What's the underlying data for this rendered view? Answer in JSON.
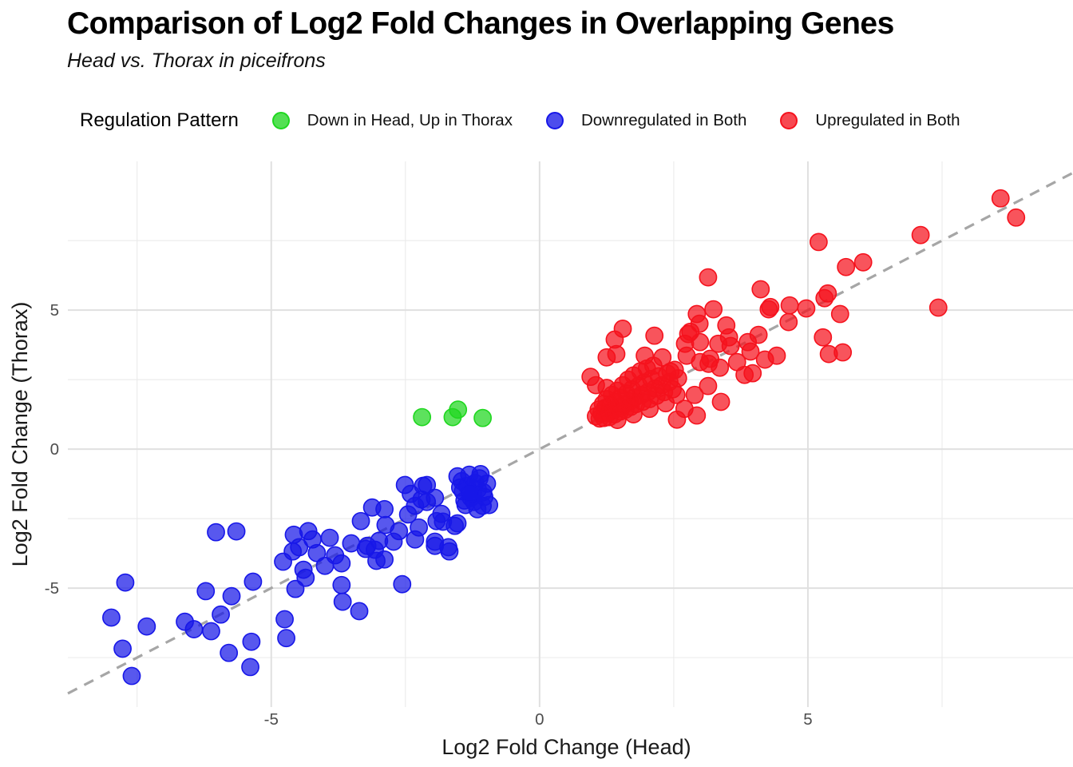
{
  "title": "Comparison of Log2 Fold Changes in Overlapping Genes",
  "subtitle": "Head vs. Thorax in piceifrons",
  "legend": {
    "title": "Regulation Pattern",
    "position": "top"
  },
  "colors": {
    "background": "#ffffff",
    "grid_major": "#e0e0e0",
    "grid_minor": "#ececec",
    "reference_line": "#a6a6a6",
    "tick_label": "#4d4d4d",
    "axis_title": "#1a1a1a",
    "green": "#1fd71f",
    "blue": "#1717e8",
    "red": "#f5121d"
  },
  "chart_data": {
    "type": "scatter",
    "title": "Comparison of Log2 Fold Changes in Overlapping Genes",
    "subtitle": "Head vs. Thorax in piceifrons",
    "xlabel": "Log2 Fold Change (Head)",
    "ylabel": "Log2 Fold Change (Thorax)",
    "xlim": [
      -8.79,
      9.94
    ],
    "ylim": [
      -9.28,
      10.35
    ],
    "x_ticks": [
      -5,
      0,
      5
    ],
    "y_ticks": [
      -5,
      0,
      5
    ],
    "x_minor_ticks": [
      -7.5,
      -2.5,
      2.5,
      7.5
    ],
    "y_minor_ticks": [
      -7.5,
      -2.5,
      2.5,
      7.5
    ],
    "grid": true,
    "legend_position": "top",
    "reference_line": {
      "type": "identity y = x",
      "style": "dashed",
      "color": "#a6a6a6"
    },
    "point_radius": 10.6,
    "series": [
      {
        "name": "Down in Head, Up in Thorax",
        "color": "#1fd71f",
        "points": [
          [
            -2.19,
            1.15
          ],
          [
            -1.62,
            1.15
          ],
          [
            -1.52,
            1.42
          ],
          [
            -1.06,
            1.12
          ]
        ]
      },
      {
        "name": "Downregulated in Both",
        "color": "#1717e8",
        "points": [
          [
            -7.72,
            -4.8
          ],
          [
            -7.98,
            -6.06
          ],
          [
            -7.77,
            -7.18
          ],
          [
            -7.6,
            -8.16
          ],
          [
            -7.32,
            -6.38
          ],
          [
            -6.61,
            -6.21
          ],
          [
            -6.44,
            -6.48
          ],
          [
            -6.22,
            -5.11
          ],
          [
            -6.12,
            -6.55
          ],
          [
            -5.94,
            -5.95
          ],
          [
            -6.03,
            -2.99
          ],
          [
            -5.65,
            -2.96
          ],
          [
            -5.79,
            -7.33
          ],
          [
            -5.74,
            -5.29
          ],
          [
            -5.34,
            -4.77
          ],
          [
            -5.37,
            -6.93
          ],
          [
            -5.39,
            -7.84
          ],
          [
            -4.75,
            -6.12
          ],
          [
            -4.72,
            -6.8
          ],
          [
            -4.78,
            -4.05
          ],
          [
            -4.6,
            -3.68
          ],
          [
            -4.48,
            -3.53
          ],
          [
            -4.58,
            -3.08
          ],
          [
            -4.31,
            -2.95
          ],
          [
            -4.4,
            -4.34
          ],
          [
            -4.36,
            -4.63
          ],
          [
            -4.55,
            -5.03
          ],
          [
            -4.23,
            -3.25
          ],
          [
            -4.15,
            -3.74
          ],
          [
            -4.0,
            -4.2
          ],
          [
            -3.91,
            -3.19
          ],
          [
            -3.81,
            -3.82
          ],
          [
            -3.69,
            -4.11
          ],
          [
            -3.69,
            -4.89
          ],
          [
            -3.67,
            -5.49
          ],
          [
            -3.36,
            -5.83
          ],
          [
            -3.51,
            -3.39
          ],
          [
            -3.33,
            -2.59
          ],
          [
            -3.24,
            -3.59
          ],
          [
            -3.21,
            -3.48
          ],
          [
            -3.12,
            -2.1
          ],
          [
            -3.07,
            -3.62
          ],
          [
            -3.04,
            -4.02
          ],
          [
            -2.99,
            -3.3
          ],
          [
            -2.89,
            -2.16
          ],
          [
            -2.89,
            -3.97
          ],
          [
            -2.87,
            -2.73
          ],
          [
            -2.72,
            -3.33
          ],
          [
            -2.56,
            -4.86
          ],
          [
            -2.62,
            -2.95
          ],
          [
            -2.45,
            -2.35
          ],
          [
            -2.51,
            -1.29
          ],
          [
            -2.4,
            -1.61
          ],
          [
            -2.32,
            -2.04
          ],
          [
            -2.25,
            -2.82
          ],
          [
            -2.32,
            -3.25
          ],
          [
            -2.17,
            -1.32
          ],
          [
            -2.1,
            -1.9
          ],
          [
            -2.1,
            -1.29
          ],
          [
            -2.2,
            -1.81
          ],
          [
            -1.95,
            -1.75
          ],
          [
            -1.92,
            -2.59
          ],
          [
            -1.83,
            -2.33
          ],
          [
            -1.95,
            -3.33
          ],
          [
            -1.95,
            -3.48
          ],
          [
            -1.8,
            -2.61
          ],
          [
            -1.7,
            -3.53
          ],
          [
            -1.68,
            -3.68
          ],
          [
            -1.58,
            -2.76
          ],
          [
            -1.53,
            -2.67
          ],
          [
            -1.06,
            -2.04
          ],
          [
            -0.94,
            -2.01
          ],
          [
            -1.53,
            -0.98
          ],
          [
            -1.45,
            -1.15
          ],
          [
            -1.43,
            -1.52
          ],
          [
            -1.4,
            -1.85
          ],
          [
            -1.38,
            -2.01
          ],
          [
            -1.35,
            -1.32
          ],
          [
            -1.31,
            -0.92
          ],
          [
            -1.28,
            -1.75
          ],
          [
            -1.24,
            -1.61
          ],
          [
            -1.22,
            -1.9
          ],
          [
            -1.2,
            -1.22
          ],
          [
            -1.16,
            -2.16
          ],
          [
            -1.15,
            -1.45
          ],
          [
            -1.12,
            -1.05
          ],
          [
            -1.1,
            -0.9
          ],
          [
            -1.05,
            -1.55
          ],
          [
            -1.03,
            -1.72
          ],
          [
            -0.98,
            -1.24
          ],
          [
            -1.48,
            -1.38
          ],
          [
            -1.3,
            -1.58
          ]
        ]
      },
      {
        "name": "Upregulated in Both",
        "color": "#f5121d",
        "points": [
          [
            1.05,
            1.18
          ],
          [
            1.1,
            1.42
          ],
          [
            1.12,
            1.1
          ],
          [
            1.15,
            1.28
          ],
          [
            1.18,
            1.62
          ],
          [
            1.2,
            1.12
          ],
          [
            1.22,
            1.48
          ],
          [
            1.25,
            1.8
          ],
          [
            1.28,
            1.3
          ],
          [
            1.3,
            1.15
          ],
          [
            1.32,
            1.58
          ],
          [
            1.35,
            1.95
          ],
          [
            1.38,
            1.4
          ],
          [
            1.4,
            1.25
          ],
          [
            1.42,
            1.7
          ],
          [
            1.45,
            2.1
          ],
          [
            1.48,
            1.52
          ],
          [
            1.5,
            1.35
          ],
          [
            1.52,
            1.85
          ],
          [
            1.55,
            2.3
          ],
          [
            1.58,
            1.6
          ],
          [
            1.6,
            1.42
          ],
          [
            1.62,
            2.0
          ],
          [
            1.65,
            2.5
          ],
          [
            1.68,
            1.72
          ],
          [
            1.7,
            1.52
          ],
          [
            1.72,
            2.15
          ],
          [
            1.75,
            2.65
          ],
          [
            1.78,
            1.85
          ],
          [
            1.8,
            1.62
          ],
          [
            1.85,
            2.28
          ],
          [
            1.88,
            2.8
          ],
          [
            1.9,
            1.95
          ],
          [
            1.92,
            1.7
          ],
          [
            1.95,
            2.4
          ],
          [
            2.0,
            2.9
          ],
          [
            2.02,
            2.05
          ],
          [
            2.05,
            1.8
          ],
          [
            2.08,
            2.52
          ],
          [
            2.12,
            3.0
          ],
          [
            2.15,
            2.18
          ],
          [
            2.18,
            1.92
          ],
          [
            2.22,
            2.62
          ],
          [
            2.28,
            2.3
          ],
          [
            2.32,
            2.05
          ],
          [
            2.38,
            2.72
          ],
          [
            2.42,
            2.42
          ],
          [
            2.48,
            2.15
          ],
          [
            2.52,
            2.85
          ],
          [
            2.58,
            2.55
          ],
          [
            1.25,
            2.2
          ],
          [
            1.45,
            1.05
          ],
          [
            1.75,
            1.25
          ],
          [
            2.05,
            1.45
          ],
          [
            2.35,
            1.65
          ],
          [
            2.55,
            1.95
          ],
          [
            2.56,
            1.06
          ],
          [
            2.93,
            1.21
          ],
          [
            2.89,
            1.95
          ],
          [
            3.14,
            2.27
          ],
          [
            3.38,
            1.7
          ],
          [
            2.7,
            1.45
          ],
          [
            0.95,
            2.6
          ],
          [
            1.05,
            2.3
          ],
          [
            1.25,
            3.3
          ],
          [
            1.43,
            3.42
          ],
          [
            1.4,
            3.94
          ],
          [
            1.55,
            4.33
          ],
          [
            1.96,
            3.36
          ],
          [
            2.14,
            4.08
          ],
          [
            2.29,
            3.3
          ],
          [
            2.44,
            2.79
          ],
          [
            2.74,
            3.36
          ],
          [
            2.81,
            4.22
          ],
          [
            2.99,
            3.13
          ],
          [
            3.18,
            3.25
          ],
          [
            3.36,
            2.93
          ],
          [
            3.68,
            3.13
          ],
          [
            3.88,
            3.85
          ],
          [
            3.82,
            2.67
          ],
          [
            3.15,
            3.07
          ],
          [
            2.71,
            3.79
          ],
          [
            2.99,
            3.85
          ],
          [
            3.33,
            3.79
          ],
          [
            3.56,
            3.71
          ],
          [
            3.48,
            4.45
          ],
          [
            3.53,
            4.02
          ],
          [
            4.08,
            4.11
          ],
          [
            4.2,
            3.22
          ],
          [
            4.42,
            3.36
          ],
          [
            3.97,
            2.73
          ],
          [
            3.93,
            3.51
          ],
          [
            2.77,
            4.14
          ],
          [
            2.93,
            4.86
          ],
          [
            2.98,
            4.51
          ],
          [
            3.24,
            5.03
          ],
          [
            3.14,
            6.18
          ],
          [
            4.12,
            5.75
          ],
          [
            4.27,
            5.03
          ],
          [
            4.3,
            5.11
          ],
          [
            4.66,
            5.17
          ],
          [
            4.64,
            4.57
          ],
          [
            4.97,
            5.06
          ],
          [
            5.31,
            5.43
          ],
          [
            5.37,
            5.6
          ],
          [
            5.6,
            4.86
          ],
          [
            5.28,
            4.02
          ],
          [
            5.39,
            3.42
          ],
          [
            5.65,
            3.48
          ],
          [
            5.2,
            7.45
          ],
          [
            5.71,
            6.55
          ],
          [
            6.03,
            6.72
          ],
          [
            7.1,
            7.7
          ],
          [
            7.43,
            5.09
          ],
          [
            8.59,
            9.02
          ],
          [
            8.88,
            8.33
          ]
        ]
      }
    ]
  }
}
